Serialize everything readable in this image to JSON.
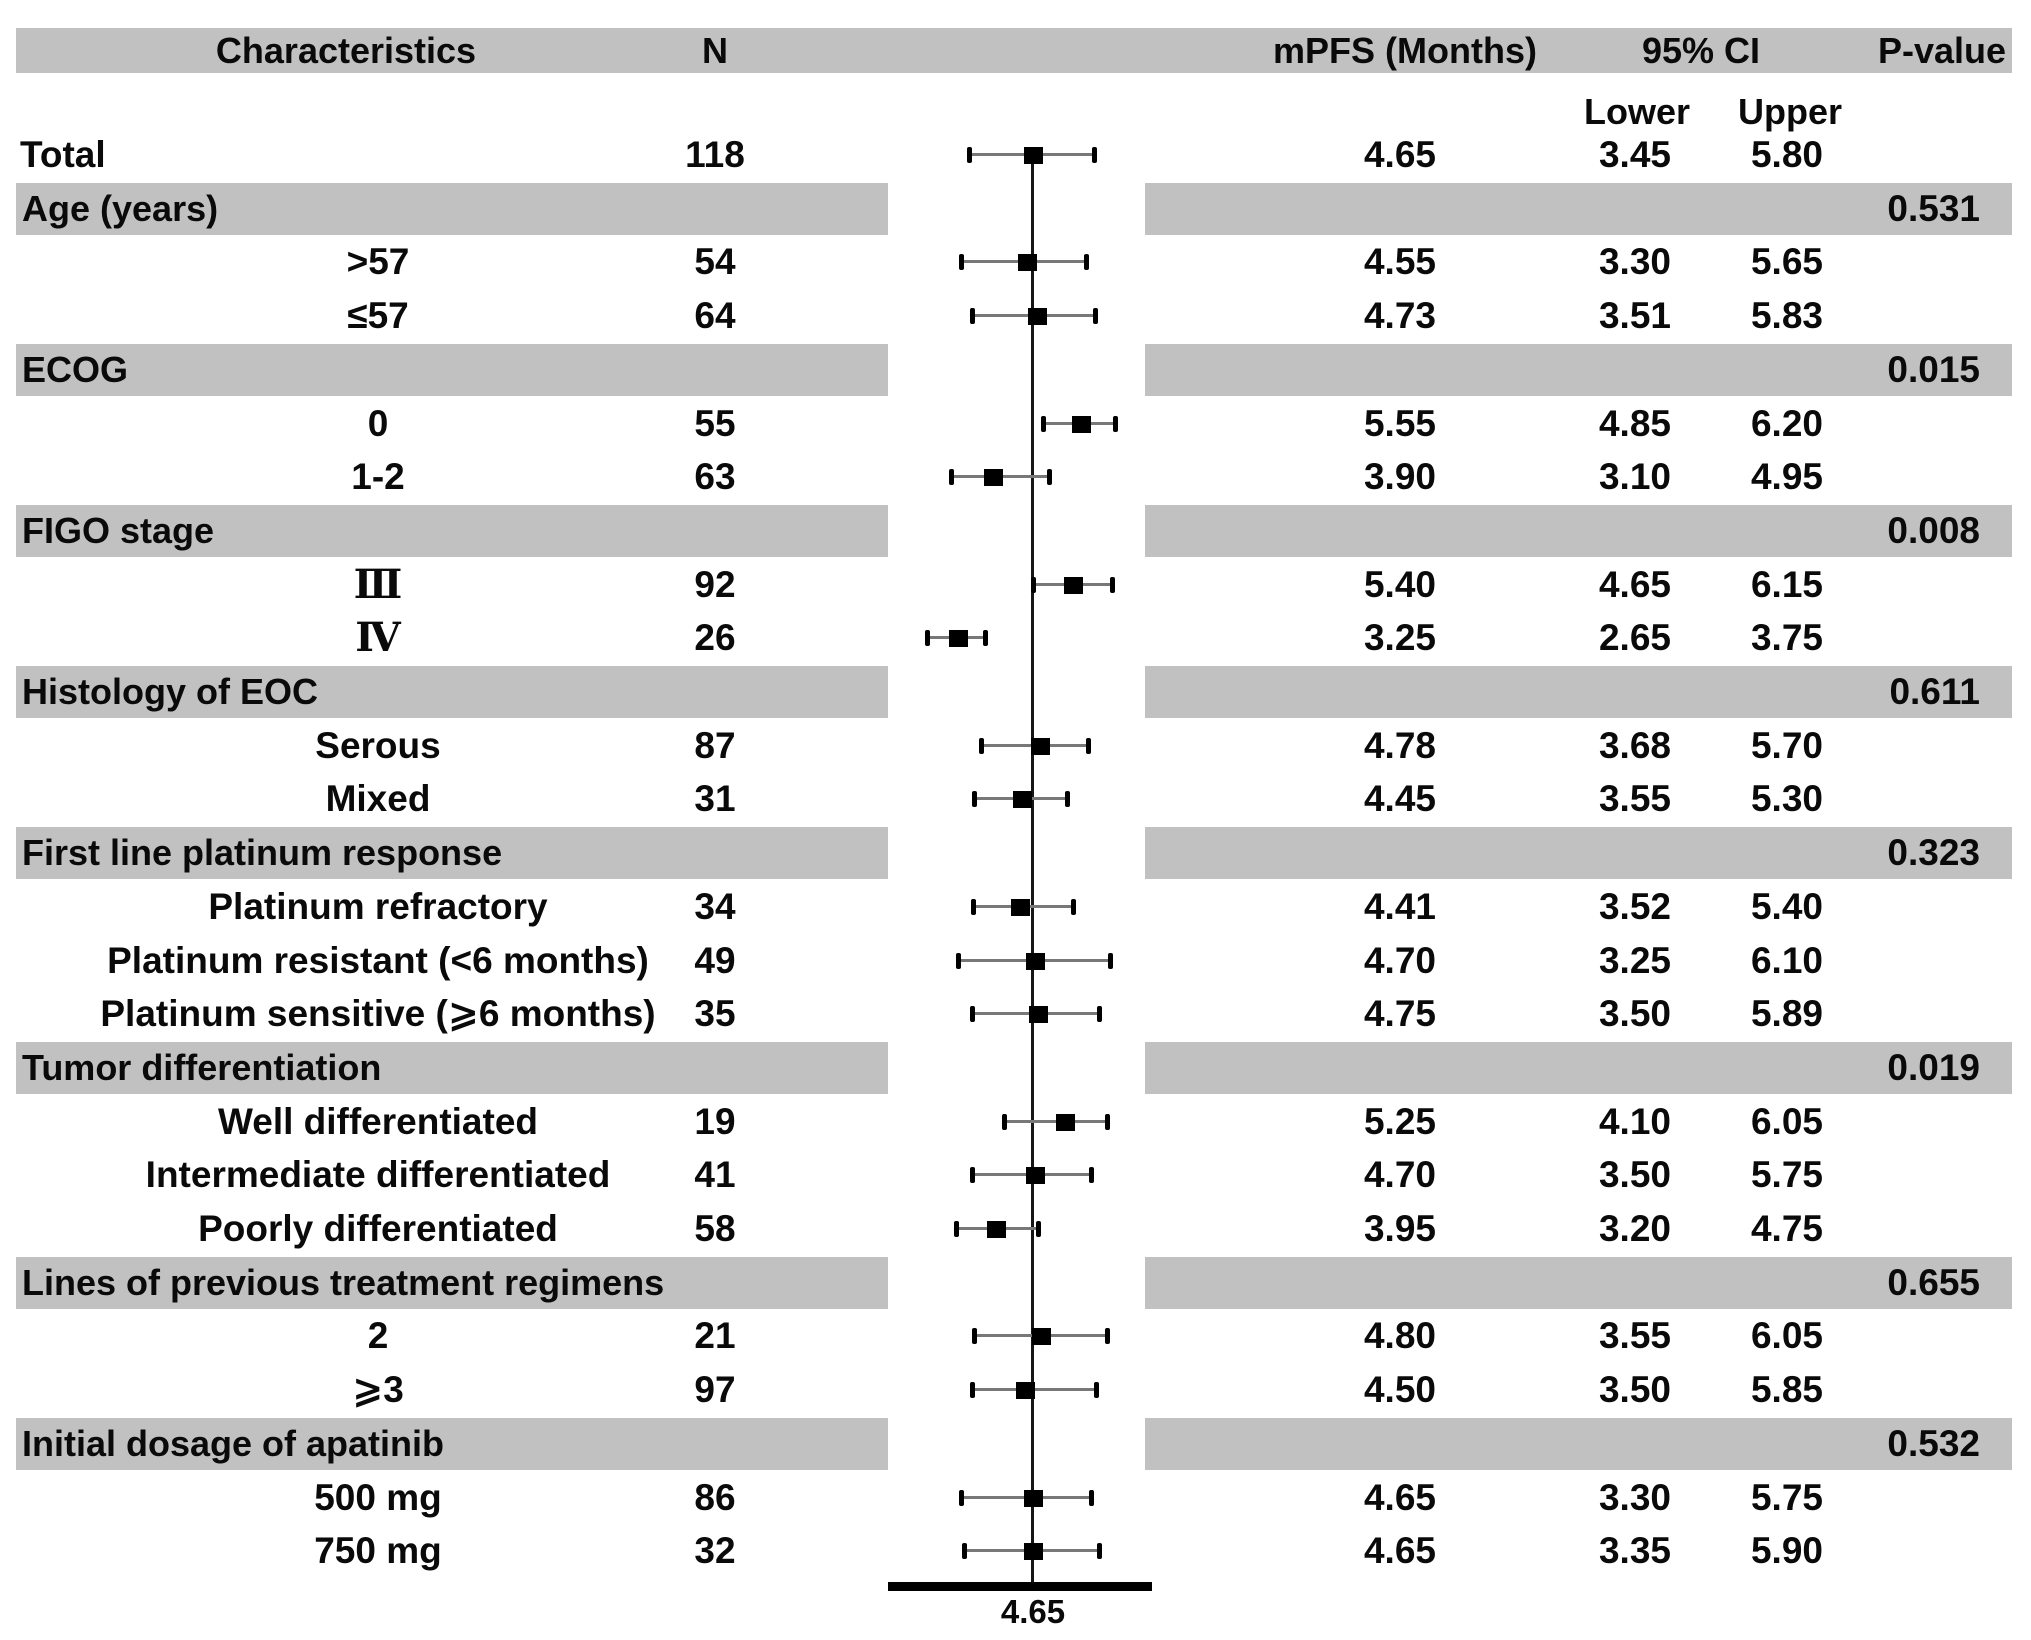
{
  "header": {
    "characteristics": "Characteristics",
    "n": "N",
    "mpfs": "mPFS (Months)",
    "ci": "95% CI",
    "pvalue": "P-value",
    "lower": "Lower",
    "upper": "Upper"
  },
  "colors": {
    "section_bar": "#c1c1c1",
    "marker": "#000000",
    "ci_line": "#787878",
    "background": "#ffffff",
    "text": "#0a0a0a"
  },
  "chart_data": {
    "type": "forest",
    "title": "Subgroup analysis of median progression-free survival (mPFS)",
    "xlabel": "mPFS (Months)",
    "x_range": [
      1.95,
      6.85
    ],
    "ref_line": 4.65,
    "ref_line_label": "4.65",
    "grid": false,
    "legend": "none",
    "rows": [
      {
        "kind": "data",
        "label": "Total",
        "align": "left",
        "n": "118",
        "mpfs": "4.65",
        "lower": "3.45",
        "upper": "5.80"
      },
      {
        "kind": "section",
        "label": "Age (years)",
        "pvalue": "0.531"
      },
      {
        "kind": "data",
        "label": ">57",
        "n": "54",
        "mpfs": "4.55",
        "lower": "3.30",
        "upper": "5.65"
      },
      {
        "kind": "data",
        "label": "≤57",
        "n": "64",
        "mpfs": "4.73",
        "lower": "3.51",
        "upper": "5.83"
      },
      {
        "kind": "section",
        "label": "ECOG",
        "pvalue": "0.015"
      },
      {
        "kind": "data",
        "label": "0",
        "n": "55",
        "mpfs": "5.55",
        "lower": "4.85",
        "upper": "6.20"
      },
      {
        "kind": "data",
        "label": "1-2",
        "n": "63",
        "mpfs": "3.90",
        "lower": "3.10",
        "upper": "4.95"
      },
      {
        "kind": "section",
        "label": "FIGO stage",
        "pvalue": "0.008"
      },
      {
        "kind": "data",
        "label": "Ⅲ",
        "serif": true,
        "n": "92",
        "mpfs": "5.40",
        "lower": "4.65",
        "upper": "6.15"
      },
      {
        "kind": "data",
        "label": "Ⅳ",
        "serif": true,
        "n": "26",
        "mpfs": "3.25",
        "lower": "2.65",
        "upper": "3.75"
      },
      {
        "kind": "section",
        "label": "Histology of EOC",
        "pvalue": "0.611"
      },
      {
        "kind": "data",
        "label": "Serous",
        "n": "87",
        "mpfs": "4.78",
        "lower": "3.68",
        "upper": "5.70"
      },
      {
        "kind": "data",
        "label": "Mixed",
        "n": "31",
        "mpfs": "4.45",
        "lower": "3.55",
        "upper": "5.30"
      },
      {
        "kind": "section",
        "label": "First line platinum response",
        "pvalue": "0.323"
      },
      {
        "kind": "data",
        "label": "Platinum refractory",
        "n": "34",
        "mpfs": "4.41",
        "lower": "3.52",
        "upper": "5.40"
      },
      {
        "kind": "data",
        "label": "Platinum resistant (<6 months)",
        "n": "49",
        "mpfs": "4.70",
        "lower": "3.25",
        "upper": "6.10"
      },
      {
        "kind": "data",
        "label": "Platinum sensitive (⩾6 months)",
        "n": "35",
        "mpfs": "4.75",
        "lower": "3.50",
        "upper": "5.89"
      },
      {
        "kind": "section",
        "label": "Tumor differentiation",
        "pvalue": "0.019"
      },
      {
        "kind": "data",
        "label": "Well differentiated",
        "n": "19",
        "mpfs": "5.25",
        "lower": "4.10",
        "upper": "6.05"
      },
      {
        "kind": "data",
        "label": "Intermediate differentiated",
        "n": "41",
        "mpfs": "4.70",
        "lower": "3.50",
        "upper": "5.75"
      },
      {
        "kind": "data",
        "label": "Poorly differentiated",
        "n": "58",
        "mpfs": "3.95",
        "lower": "3.20",
        "upper": "4.75"
      },
      {
        "kind": "section",
        "label": "Lines of previous treatment regimens",
        "pvalue": "0.655"
      },
      {
        "kind": "data",
        "label": "2",
        "n": "21",
        "mpfs": "4.80",
        "lower": "3.55",
        "upper": "6.05"
      },
      {
        "kind": "data",
        "label": "⩾3",
        "n": "97",
        "mpfs": "4.50",
        "lower": "3.50",
        "upper": "5.85"
      },
      {
        "kind": "section",
        "label": "Initial dosage of apatinib",
        "pvalue": "0.532"
      },
      {
        "kind": "data",
        "label": "500 mg",
        "n": "86",
        "mpfs": "4.65",
        "lower": "3.30",
        "upper": "5.75"
      },
      {
        "kind": "data",
        "label": "750 mg",
        "n": "32",
        "mpfs": "4.65",
        "lower": "3.35",
        "upper": "5.90"
      }
    ]
  }
}
